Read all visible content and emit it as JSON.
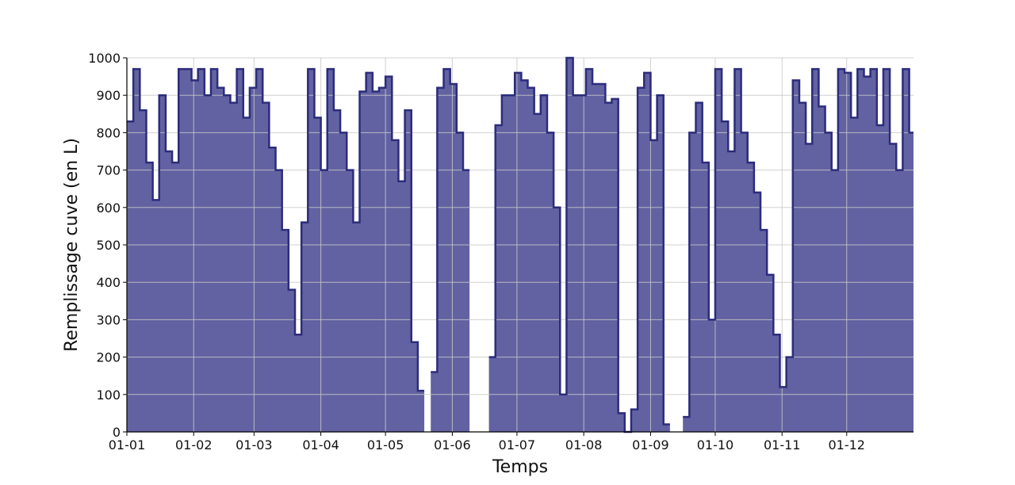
{
  "chart_data": {
    "type": "step-area",
    "xlabel": "Temps",
    "ylabel": "Remplissage cuve (en L)",
    "x": [
      0,
      3,
      6,
      9,
      12,
      15,
      18,
      21,
      24,
      27,
      30,
      33,
      36,
      39,
      42,
      45,
      48,
      51,
      54,
      57,
      60,
      63,
      66,
      69,
      72,
      75,
      78,
      81,
      84,
      87,
      90,
      93,
      96,
      99,
      102,
      105,
      108,
      111,
      114,
      117,
      120,
      123,
      126,
      129,
      132,
      135,
      138,
      141,
      144,
      147,
      150,
      153,
      156,
      159,
      162,
      165,
      168,
      171,
      174,
      177,
      180,
      183,
      186,
      189,
      192,
      195,
      198,
      201,
      204,
      207,
      210,
      213,
      216,
      219,
      222,
      225,
      228,
      231,
      234,
      237,
      240,
      243,
      246,
      249,
      252,
      255,
      258,
      261,
      264,
      267,
      270,
      273,
      276,
      279,
      282,
      285,
      288,
      291,
      294,
      297,
      300,
      303,
      306,
      309,
      312,
      315,
      318,
      321,
      324,
      327,
      330,
      333,
      336,
      339,
      342,
      345,
      348,
      351,
      354,
      357,
      360,
      363
    ],
    "values": [
      830,
      970,
      860,
      720,
      620,
      900,
      750,
      720,
      970,
      970,
      940,
      970,
      900,
      970,
      920,
      900,
      880,
      970,
      840,
      920,
      970,
      880,
      760,
      700,
      540,
      380,
      260,
      560,
      970,
      840,
      700,
      970,
      860,
      800,
      700,
      560,
      910,
      960,
      910,
      920,
      950,
      780,
      670,
      860,
      240,
      110,
      null,
      160,
      920,
      970,
      930,
      800,
      700,
      null,
      null,
      null,
      200,
      820,
      900,
      900,
      960,
      940,
      920,
      850,
      900,
      800,
      600,
      100,
      1000,
      900,
      900,
      970,
      930,
      930,
      880,
      890,
      50,
      0,
      60,
      920,
      960,
      780,
      900,
      20,
      null,
      null,
      40,
      800,
      880,
      720,
      300,
      970,
      830,
      750,
      970,
      800,
      720,
      640,
      540,
      420,
      260,
      120,
      200,
      940,
      880,
      770,
      970,
      870,
      800,
      700,
      970,
      960,
      840,
      970,
      950,
      970,
      820,
      970,
      770,
      700,
      970,
      800
    ],
    "fill_color": "#6262a2",
    "line_color": "#2c2c7c",
    "xlim": [
      0,
      365
    ],
    "ylim": [
      0,
      1000
    ],
    "xticks": [
      {
        "value": 0,
        "label": "01-01"
      },
      {
        "value": 31,
        "label": "01-02"
      },
      {
        "value": 59,
        "label": "01-03"
      },
      {
        "value": 90,
        "label": "01-04"
      },
      {
        "value": 120,
        "label": "01-05"
      },
      {
        "value": 151,
        "label": "01-06"
      },
      {
        "value": 181,
        "label": "01-07"
      },
      {
        "value": 212,
        "label": "01-08"
      },
      {
        "value": 243,
        "label": "01-09"
      },
      {
        "value": 273,
        "label": "01-10"
      },
      {
        "value": 304,
        "label": "01-11"
      },
      {
        "value": 334,
        "label": "01-12"
      }
    ],
    "yticks": [
      0,
      100,
      200,
      300,
      400,
      500,
      600,
      700,
      800,
      900,
      1000
    ],
    "grid": true
  }
}
